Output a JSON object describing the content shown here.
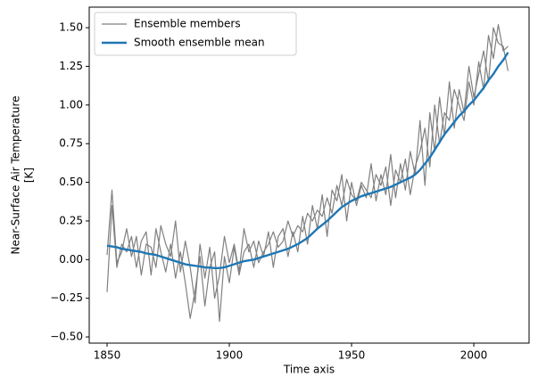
{
  "chart_data": {
    "type": "line",
    "xlabel": "Time axis",
    "ylabel": [
      "Near-Surface Air Temperature",
      "[K]"
    ],
    "x": [
      1850,
      1852,
      1854,
      1856,
      1858,
      1860,
      1862,
      1864,
      1866,
      1868,
      1870,
      1872,
      1874,
      1876,
      1878,
      1880,
      1882,
      1884,
      1886,
      1888,
      1890,
      1892,
      1894,
      1896,
      1898,
      1900,
      1902,
      1904,
      1906,
      1908,
      1910,
      1912,
      1914,
      1916,
      1918,
      1920,
      1922,
      1924,
      1926,
      1928,
      1930,
      1932,
      1934,
      1936,
      1938,
      1940,
      1942,
      1944,
      1946,
      1948,
      1950,
      1952,
      1954,
      1956,
      1958,
      1960,
      1962,
      1964,
      1966,
      1968,
      1970,
      1972,
      1974,
      1976,
      1978,
      1980,
      1982,
      1984,
      1986,
      1988,
      1990,
      1992,
      1994,
      1996,
      1998,
      2000,
      2002,
      2004,
      2006,
      2008,
      2010,
      2012,
      2014
    ],
    "series": [
      {
        "name": "Ensemble members",
        "color": "#808080",
        "linewidth": 1,
        "members": [
          [
            -0.21,
            0.35,
            -0.05,
            0.1,
            0.05,
            0.15,
            -0.05,
            0.12,
            0.18,
            -0.1,
            0.2,
            0.05,
            -0.08,
            0.1,
            -0.12,
            0.05,
            -0.15,
            -0.38,
            -0.2,
            0.02,
            -0.3,
            -0.05,
            0.05,
            -0.4,
            0.02,
            -0.15,
            0.08,
            -0.1,
            0.05,
            0.1,
            -0.05,
            0.12,
            0.02,
            0.18,
            -0.05,
            0.15,
            0.2,
            0.02,
            0.18,
            0.05,
            0.28,
            0.1,
            0.35,
            0.2,
            0.42,
            0.15,
            0.45,
            0.38,
            0.55,
            0.25,
            0.5,
            0.35,
            0.48,
            0.4,
            0.62,
            0.38,
            0.55,
            0.42,
            0.68,
            0.4,
            0.62,
            0.45,
            0.7,
            0.55,
            0.9,
            0.48,
            0.95,
            0.7,
            1.05,
            0.8,
            1.15,
            0.85,
            1.1,
            0.95,
            1.25,
            1.05,
            1.2,
            1.35,
            1.15,
            1.5,
            1.4,
            1.38,
            1.22
          ],
          [
            0.03,
            0.45,
            -0.02,
            0.05,
            0.2,
            0.02,
            0.15,
            -0.1,
            0.1,
            0.08,
            -0.05,
            0.22,
            0.1,
            0.02,
            0.25,
            -0.08,
            0.12,
            -0.05,
            -0.28,
            0.1,
            -0.12,
            0.08,
            -0.25,
            -0.1,
            0.15,
            -0.02,
            0.1,
            -0.08,
            0.2,
            0.05,
            0.12,
            -0.02,
            0.05,
            0.1,
            0.18,
            0.08,
            0.12,
            0.25,
            0.15,
            0.22,
            0.18,
            0.3,
            0.25,
            0.32,
            0.28,
            0.4,
            0.3,
            0.48,
            0.35,
            0.52,
            0.42,
            0.38,
            0.5,
            0.45,
            0.4,
            0.55,
            0.48,
            0.6,
            0.35,
            0.58,
            0.5,
            0.65,
            0.42,
            0.6,
            0.7,
            0.85,
            0.6,
            1.0,
            0.75,
            0.95,
            0.9,
            1.1,
            1.0,
            0.9,
            1.15,
            1.0,
            1.28,
            1.1,
            1.45,
            1.3,
            1.52,
            1.35,
            1.38
          ]
        ]
      },
      {
        "name": "Smooth ensemble mean",
        "color": "#1f77b4",
        "linewidth": 2,
        "values": [
          0.09,
          0.085,
          0.08,
          0.07,
          0.065,
          0.06,
          0.055,
          0.05,
          0.04,
          0.035,
          0.03,
          0.02,
          0.01,
          0.0,
          -0.01,
          -0.02,
          -0.03,
          -0.035,
          -0.04,
          -0.045,
          -0.05,
          -0.052,
          -0.055,
          -0.055,
          -0.05,
          -0.04,
          -0.03,
          -0.02,
          -0.01,
          -0.005,
          0.0,
          0.01,
          0.02,
          0.03,
          0.04,
          0.05,
          0.06,
          0.07,
          0.085,
          0.1,
          0.12,
          0.14,
          0.17,
          0.2,
          0.225,
          0.25,
          0.28,
          0.31,
          0.34,
          0.36,
          0.38,
          0.395,
          0.41,
          0.42,
          0.43,
          0.44,
          0.45,
          0.46,
          0.47,
          0.485,
          0.5,
          0.515,
          0.53,
          0.55,
          0.58,
          0.62,
          0.66,
          0.71,
          0.76,
          0.81,
          0.85,
          0.89,
          0.93,
          0.96,
          1.0,
          1.03,
          1.07,
          1.11,
          1.16,
          1.2,
          1.25,
          1.29,
          1.34
        ]
      }
    ],
    "xlim": [
      1842.7,
      2022.6
    ],
    "ylim": [
      -0.54,
      1.633
    ],
    "xticks": [
      1850,
      1900,
      1950,
      2000
    ],
    "yticks": [
      {
        "value": -0.5,
        "label": "−0.50"
      },
      {
        "value": -0.25,
        "label": "−0.25"
      },
      {
        "value": 0,
        "label": "0.00"
      },
      0.25,
      {
        "value": 0.5,
        "label": "0.50"
      },
      0.75,
      {
        "value": 1,
        "label": "1.00"
      },
      1.25,
      {
        "value": 1.5,
        "label": "1.50"
      }
    ],
    "legend": "upper left"
  }
}
